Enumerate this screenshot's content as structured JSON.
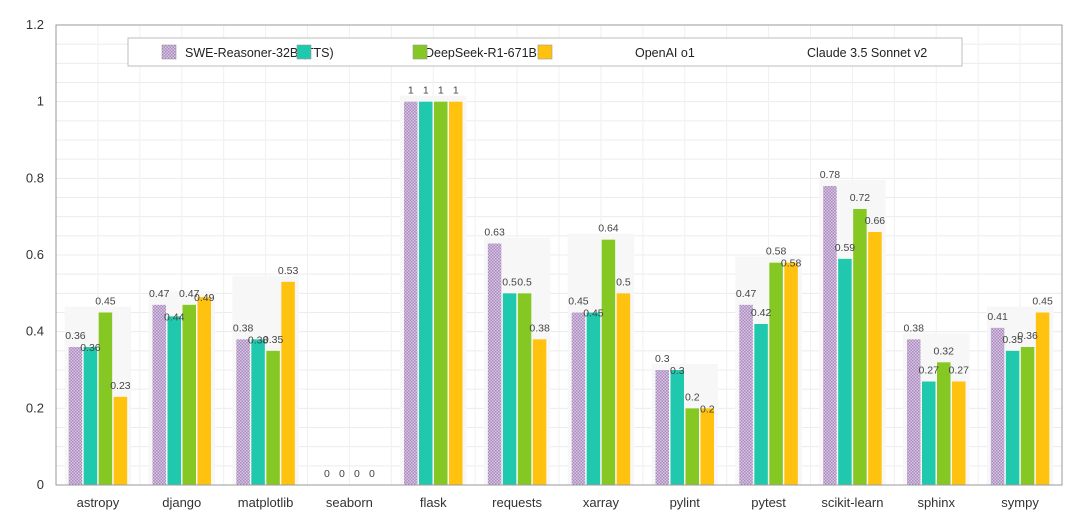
{
  "chart_data": {
    "type": "bar",
    "title": "",
    "xlabel": "",
    "ylabel": "",
    "ylim": [
      0,
      1.2
    ],
    "yticks": [
      "0",
      "0.2",
      "0.4",
      "0.6",
      "0.8",
      "1",
      "1.2"
    ],
    "ytick_values": [
      0,
      0.2,
      0.4,
      0.6,
      0.8,
      1.0,
      1.2
    ],
    "grid": true,
    "legend_position": "top-center",
    "categories": [
      "astropy",
      "django",
      "matplotlib",
      "seaborn",
      "flask",
      "requests",
      "xarray",
      "pylint",
      "pytest",
      "scikit-learn",
      "sphinx",
      "sympy"
    ],
    "series": [
      {
        "name": "SWE-Reasoner-32B (TTS)",
        "color": "#c8a8d8",
        "pattern": "hatched",
        "values": [
          0.36,
          0.47,
          0.38,
          0,
          1,
          0.63,
          0.45,
          0.3,
          0.47,
          0.78,
          0.38,
          0.41
        ]
      },
      {
        "name": "DeepSeek-R1-671B",
        "color": "#20c9ad",
        "values": [
          0.36,
          0.44,
          0.38,
          0,
          1,
          0.5,
          0.45,
          0.3,
          0.42,
          0.59,
          0.27,
          0.35
        ]
      },
      {
        "name": "OpenAI o1",
        "color": "#86c823",
        "values": [
          0.45,
          0.47,
          0.35,
          0,
          1,
          0.5,
          0.64,
          0.2,
          0.58,
          0.72,
          0.32,
          0.36
        ]
      },
      {
        "name": "Claude 3.5 Sonnet v2",
        "color": "#ffc20e",
        "values": [
          0.23,
          0.49,
          0.53,
          0,
          1,
          0.38,
          0.5,
          0.2,
          0.58,
          0.66,
          0.27,
          0.45
        ]
      }
    ]
  }
}
